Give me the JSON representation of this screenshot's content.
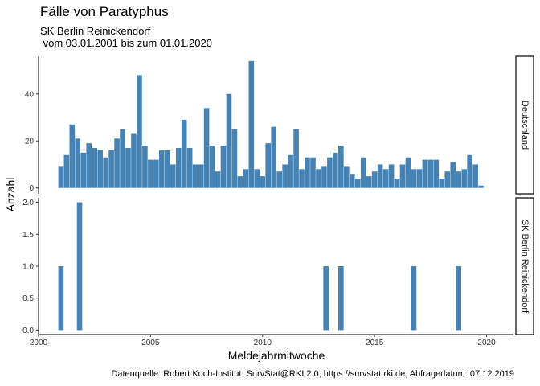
{
  "header": {
    "title": "Fälle von Paratyphus",
    "subtitle_line1": "SK Berlin Reinickendorf",
    "subtitle_line2": " vom 03.01.2001 bis zum 01.01.2020"
  },
  "caption": "Datenquelle: Robert Koch-Institut: SurvStat@RKI 2.0, https://survstat.rki.de, Abfragedatum: 07.12.2019",
  "colors": {
    "bar": "#4682b4",
    "axis": "#000000",
    "tick_text": "#333333"
  },
  "chart_data": {
    "type": "bar",
    "xlabel": "Meldejahrmitwoche",
    "ylabel": "Anzahl",
    "x_ticks": [
      "2000",
      "2005",
      "2010",
      "2015",
      "2020"
    ],
    "xlim": [
      2000,
      2021.2
    ],
    "grid": false,
    "panels": [
      {
        "strip": "Deutschland",
        "ylim": [
          -2.5,
          56
        ],
        "y_ticks": [
          "0",
          "20",
          "40"
        ],
        "series": [
          {
            "x": [
              2001.0,
              2001.25,
              2001.5,
              2001.75,
              2002.0,
              2002.25,
              2002.5,
              2002.75,
              2003.0,
              2003.25,
              2003.5,
              2003.75,
              2004.0,
              2004.25,
              2004.5,
              2004.75,
              2005.0,
              2005.25,
              2005.5,
              2005.75,
              2006.0,
              2006.25,
              2006.5,
              2006.75,
              2007.0,
              2007.25,
              2007.5,
              2007.75,
              2008.0,
              2008.25,
              2008.5,
              2008.75,
              2009.0,
              2009.25,
              2009.5,
              2009.75,
              2010.0,
              2010.25,
              2010.5,
              2010.75,
              2011.0,
              2011.25,
              2011.5,
              2011.75,
              2012.0,
              2012.25,
              2012.5,
              2012.75,
              2013.0,
              2013.25,
              2013.5,
              2013.75,
              2014.0,
              2014.25,
              2014.5,
              2014.75,
              2015.0,
              2015.25,
              2015.5,
              2015.75,
              2016.0,
              2016.25,
              2016.5,
              2016.75,
              2017.0,
              2017.25,
              2017.5,
              2017.75,
              2018.0,
              2018.25,
              2018.5,
              2018.75,
              2019.0,
              2019.25,
              2019.5,
              2019.75
            ],
            "values": [
              9,
              14,
              27,
              21,
              15,
              19,
              17,
              16,
              13,
              16,
              21,
              25,
              17,
              23,
              48,
              18,
              12,
              12,
              16,
              16,
              10,
              17,
              29,
              17,
              10,
              10,
              34,
              18,
              7,
              18,
              40,
              25,
              5,
              8,
              54,
              8,
              5,
              19,
              26,
              7,
              10,
              14,
              25,
              8,
              13,
              13,
              8,
              9,
              13,
              15,
              18,
              9,
              6,
              4,
              13,
              5,
              7,
              10,
              8,
              10,
              4,
              10,
              13,
              8,
              8,
              12,
              12,
              12,
              4,
              7,
              11,
              7,
              8,
              14,
              10,
              1
            ]
          }
        ]
      },
      {
        "strip": "SK Berlin Reinickendorf",
        "ylim": [
          -0.07,
          2.07
        ],
        "y_ticks": [
          "0.0",
          "0.5",
          "1.0",
          "1.5",
          "2.0"
        ],
        "series": [
          {
            "x": [
              2001.0,
              2001.83,
              2012.83,
              2013.5,
              2016.75,
              2018.75
            ],
            "values": [
              1,
              2,
              1,
              1,
              1,
              1
            ]
          }
        ]
      }
    ]
  }
}
